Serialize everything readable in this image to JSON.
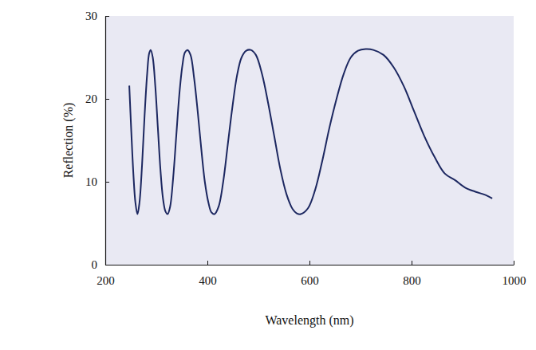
{
  "chart_data": {
    "type": "line",
    "x_label": "Wavelength (nm)",
    "y_label": "Reflection (%)",
    "x": [
      247,
      251,
      255,
      259,
      263,
      267,
      272,
      277,
      282,
      286,
      289,
      293,
      298,
      303,
      308,
      313,
      318,
      322,
      327,
      333,
      339,
      345,
      351,
      356,
      361,
      367,
      374,
      381,
      388,
      395,
      402,
      408,
      414,
      422,
      431,
      440,
      449,
      458,
      467,
      476,
      485,
      495,
      507,
      519,
      531,
      543,
      555,
      567,
      575,
      583,
      597,
      611,
      625,
      639,
      653,
      667,
      681,
      695,
      710,
      725,
      745,
      765,
      785,
      805,
      825,
      845,
      865,
      885,
      905,
      925,
      945,
      958
    ],
    "values": [
      21.6,
      16,
      11,
      7.5,
      6.1,
      7.5,
      12,
      18,
      23,
      25.5,
      25.9,
      25,
      21.5,
      16.5,
      11.5,
      8,
      6.4,
      6.1,
      7,
      10.5,
      15.5,
      20.5,
      24,
      25.6,
      25.9,
      25.3,
      22.5,
      18.5,
      14,
      10,
      7.5,
      6.3,
      6.1,
      7,
      10,
      14.5,
      19,
      22.8,
      25,
      25.8,
      25.9,
      25.3,
      23,
      19.5,
      15.5,
      11.5,
      8.5,
      6.7,
      6.2,
      6.1,
      6.8,
      9,
      12.5,
      16.5,
      20,
      23,
      25,
      25.8,
      26,
      25.9,
      25.3,
      23.8,
      21.5,
      18.5,
      15.5,
      13,
      11,
      10.2,
      9.3,
      8.8,
      8.4,
      8.0
    ],
    "color": "#1c2760",
    "xlim": [
      200,
      1000
    ],
    "ylim": [
      0,
      30
    ],
    "xticks": [
      200,
      400,
      600,
      800,
      1000
    ],
    "yticks": [
      0,
      10,
      20,
      30
    ],
    "grid": false
  }
}
